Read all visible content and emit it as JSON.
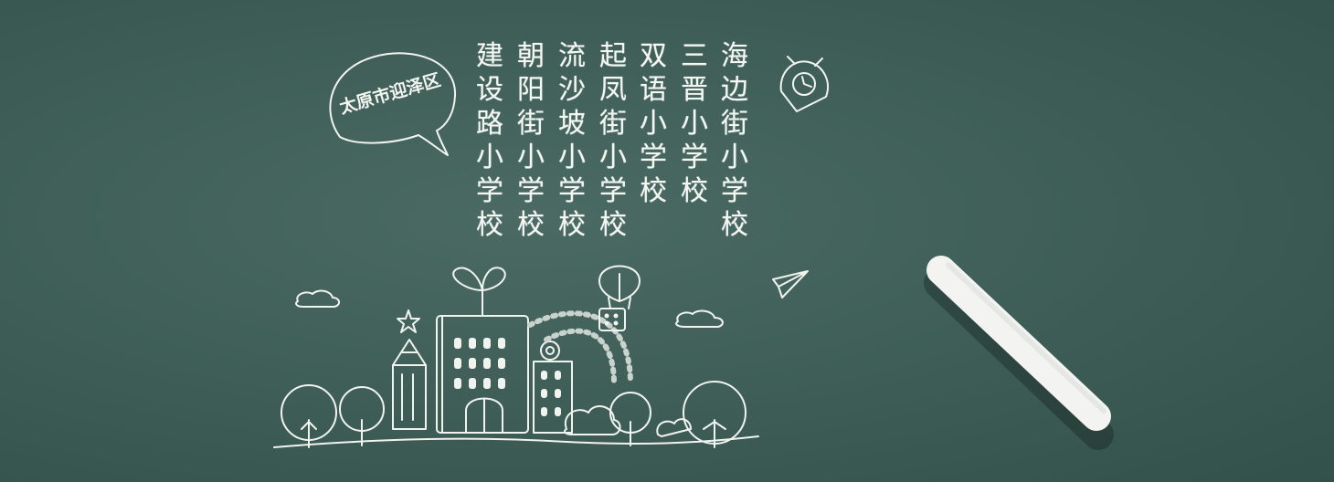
{
  "district_label": "太原市迎泽区",
  "schools": [
    {
      "name": "建设路小学校"
    },
    {
      "name": "朝阳街小学校"
    },
    {
      "name": "流沙坡小学校"
    },
    {
      "name": "起凤街小学校"
    },
    {
      "name": "双语小学校"
    },
    {
      "name": "三晋小学校"
    },
    {
      "name": "海边街小学校"
    }
  ],
  "colors": {
    "board": "#3f5f58",
    "chalk": "#f4f6f2"
  }
}
